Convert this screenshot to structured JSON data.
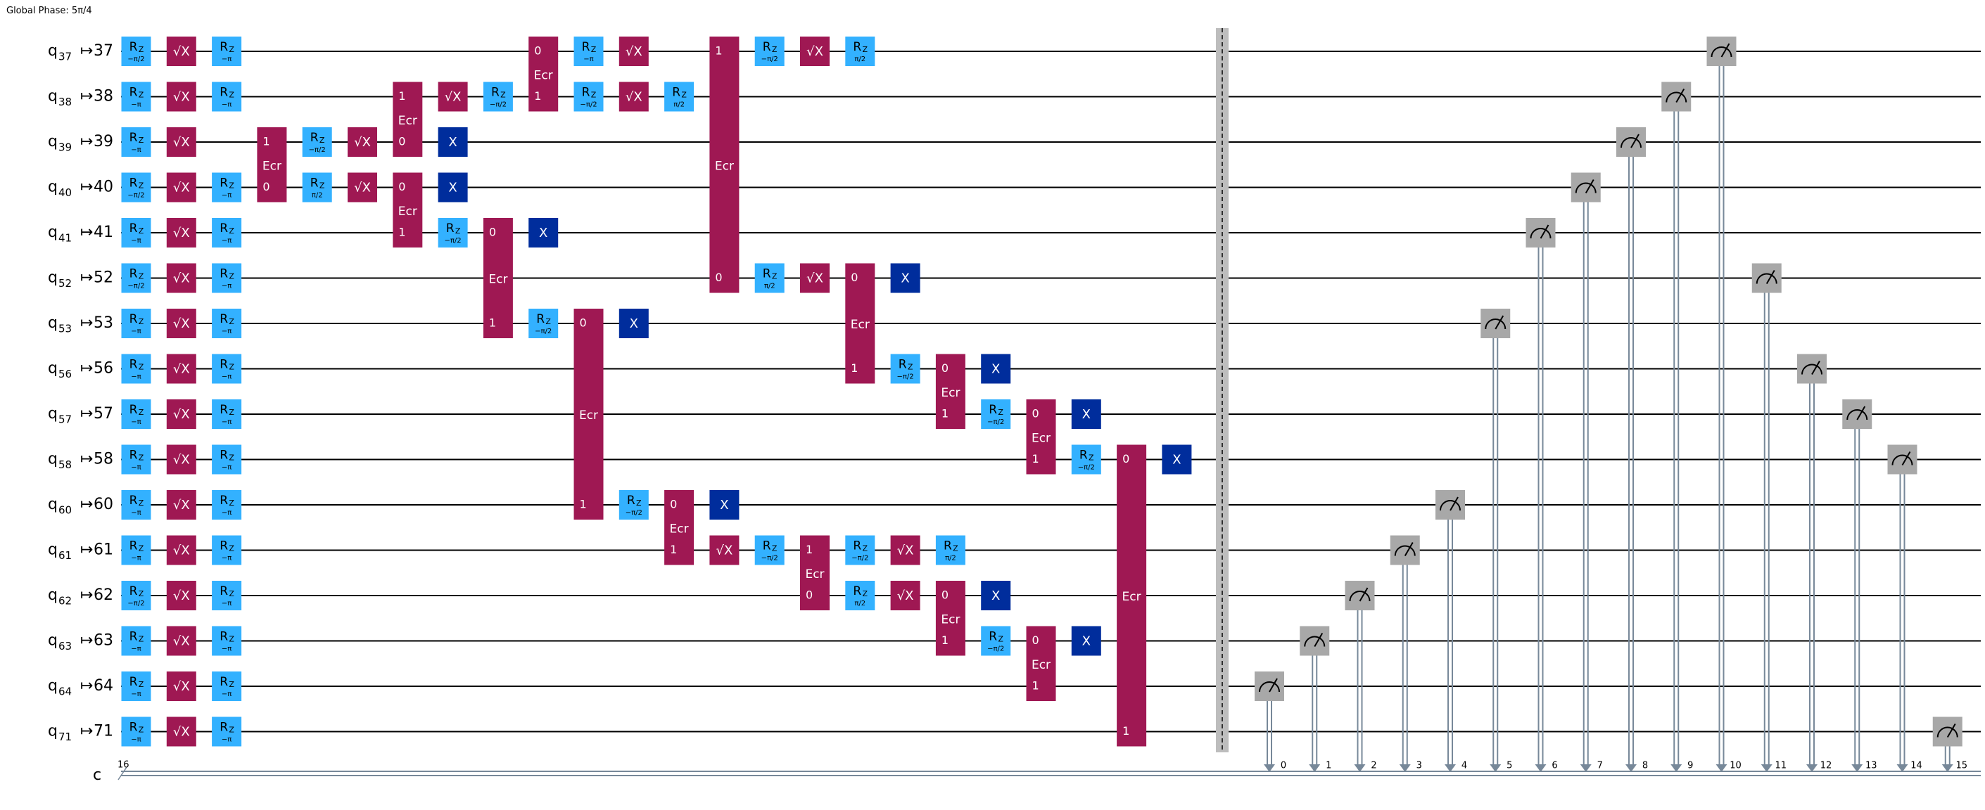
{
  "header": {
    "global_phase": "Global Phase: 5π/4"
  },
  "colors": {
    "rz": "#33b1ff",
    "sx": "#9f1853",
    "ecr": "#9f1853",
    "x": "#002d9c",
    "measure": "#a8a8a8",
    "barrier": "#bdbdbd",
    "wire": "#000000",
    "classical": "#778899"
  },
  "qubits": [
    {
      "name": "q",
      "sub": "37",
      "arrow": "↦",
      "phys": "37"
    },
    {
      "name": "q",
      "sub": "38",
      "arrow": "↦",
      "phys": "38"
    },
    {
      "name": "q",
      "sub": "39",
      "arrow": "↦",
      "phys": "39"
    },
    {
      "name": "q",
      "sub": "40",
      "arrow": "↦",
      "phys": "40"
    },
    {
      "name": "q",
      "sub": "41",
      "arrow": "↦",
      "phys": "41"
    },
    {
      "name": "q",
      "sub": "52",
      "arrow": "↦",
      "phys": "52"
    },
    {
      "name": "q",
      "sub": "53",
      "arrow": "↦",
      "phys": "53"
    },
    {
      "name": "q",
      "sub": "56",
      "arrow": "↦",
      "phys": "56"
    },
    {
      "name": "q",
      "sub": "57",
      "arrow": "↦",
      "phys": "57"
    },
    {
      "name": "q",
      "sub": "58",
      "arrow": "↦",
      "phys": "58"
    },
    {
      "name": "q",
      "sub": "60",
      "arrow": "↦",
      "phys": "60"
    },
    {
      "name": "q",
      "sub": "61",
      "arrow": "↦",
      "phys": "61"
    },
    {
      "name": "q",
      "sub": "62",
      "arrow": "↦",
      "phys": "62"
    },
    {
      "name": "q",
      "sub": "63",
      "arrow": "↦",
      "phys": "63"
    },
    {
      "name": "q",
      "sub": "64",
      "arrow": "↦",
      "phys": "64"
    },
    {
      "name": "q",
      "sub": "71",
      "arrow": "↦",
      "phys": "71"
    }
  ],
  "classical": {
    "name": "c",
    "size": "16"
  },
  "gate_labels": {
    "rz_main": "R",
    "rz_sub": "Z",
    "sx": "√X",
    "x": "X",
    "ecr": "Ecr"
  },
  "ops": [
    {
      "t": "rz",
      "q": 0,
      "c": 0,
      "p": "−π/2"
    },
    {
      "t": "rz",
      "q": 1,
      "c": 0,
      "p": "−π"
    },
    {
      "t": "rz",
      "q": 2,
      "c": 0,
      "p": "−π"
    },
    {
      "t": "rz",
      "q": 3,
      "c": 0,
      "p": "−π/2"
    },
    {
      "t": "rz",
      "q": 4,
      "c": 0,
      "p": "−π"
    },
    {
      "t": "rz",
      "q": 5,
      "c": 0,
      "p": "−π/2"
    },
    {
      "t": "rz",
      "q": 6,
      "c": 0,
      "p": "−π"
    },
    {
      "t": "rz",
      "q": 7,
      "c": 0,
      "p": "−π"
    },
    {
      "t": "rz",
      "q": 8,
      "c": 0,
      "p": "−π"
    },
    {
      "t": "rz",
      "q": 9,
      "c": 0,
      "p": "−π"
    },
    {
      "t": "rz",
      "q": 10,
      "c": 0,
      "p": "−π"
    },
    {
      "t": "rz",
      "q": 11,
      "c": 0,
      "p": "−π"
    },
    {
      "t": "rz",
      "q": 12,
      "c": 0,
      "p": "−π/2"
    },
    {
      "t": "rz",
      "q": 13,
      "c": 0,
      "p": "−π"
    },
    {
      "t": "rz",
      "q": 14,
      "c": 0,
      "p": "−π"
    },
    {
      "t": "rz",
      "q": 15,
      "c": 0,
      "p": "−π"
    },
    {
      "t": "sx",
      "q": 0,
      "c": 1
    },
    {
      "t": "sx",
      "q": 1,
      "c": 1
    },
    {
      "t": "sx",
      "q": 2,
      "c": 1
    },
    {
      "t": "sx",
      "q": 3,
      "c": 1
    },
    {
      "t": "sx",
      "q": 4,
      "c": 1
    },
    {
      "t": "sx",
      "q": 5,
      "c": 1
    },
    {
      "t": "sx",
      "q": 6,
      "c": 1
    },
    {
      "t": "sx",
      "q": 7,
      "c": 1
    },
    {
      "t": "sx",
      "q": 8,
      "c": 1
    },
    {
      "t": "sx",
      "q": 9,
      "c": 1
    },
    {
      "t": "sx",
      "q": 10,
      "c": 1
    },
    {
      "t": "sx",
      "q": 11,
      "c": 1
    },
    {
      "t": "sx",
      "q": 12,
      "c": 1
    },
    {
      "t": "sx",
      "q": 13,
      "c": 1
    },
    {
      "t": "sx",
      "q": 14,
      "c": 1
    },
    {
      "t": "sx",
      "q": 15,
      "c": 1
    },
    {
      "t": "rz",
      "q": 0,
      "c": 2,
      "p": "−π"
    },
    {
      "t": "rz",
      "q": 1,
      "c": 2,
      "p": "−π"
    },
    {
      "t": "rz",
      "q": 3,
      "c": 2,
      "p": "−π"
    },
    {
      "t": "rz",
      "q": 4,
      "c": 2,
      "p": "−π"
    },
    {
      "t": "rz",
      "q": 5,
      "c": 2,
      "p": "−π"
    },
    {
      "t": "rz",
      "q": 6,
      "c": 2,
      "p": "−π"
    },
    {
      "t": "rz",
      "q": 7,
      "c": 2,
      "p": "−π"
    },
    {
      "t": "rz",
      "q": 8,
      "c": 2,
      "p": "−π"
    },
    {
      "t": "rz",
      "q": 9,
      "c": 2,
      "p": "−π"
    },
    {
      "t": "rz",
      "q": 10,
      "c": 2,
      "p": "−π"
    },
    {
      "t": "rz",
      "q": 11,
      "c": 2,
      "p": "−π"
    },
    {
      "t": "rz",
      "q": 12,
      "c": 2,
      "p": "−π"
    },
    {
      "t": "rz",
      "q": 13,
      "c": 2,
      "p": "−π"
    },
    {
      "t": "rz",
      "q": 14,
      "c": 2,
      "p": "−π"
    },
    {
      "t": "rz",
      "q": 15,
      "c": 2,
      "p": "−π"
    },
    {
      "t": "ecr",
      "c": 3,
      "a": 2,
      "b": 3,
      "top": "1",
      "bot": "0"
    },
    {
      "t": "rz",
      "q": 2,
      "c": 4,
      "p": "−π/2"
    },
    {
      "t": "rz",
      "q": 3,
      "c": 4,
      "p": "π/2"
    },
    {
      "t": "sx",
      "q": 2,
      "c": 5
    },
    {
      "t": "sx",
      "q": 3,
      "c": 5
    },
    {
      "t": "ecr",
      "c": 6,
      "a": 1,
      "b": 2,
      "top": "1",
      "bot": "0"
    },
    {
      "t": "ecr",
      "c": 6,
      "a": 3,
      "b": 4,
      "top": "0",
      "bot": "1"
    },
    {
      "t": "sx",
      "q": 1,
      "c": 7
    },
    {
      "t": "x",
      "q": 2,
      "c": 7
    },
    {
      "t": "x",
      "q": 3,
      "c": 7
    },
    {
      "t": "rz",
      "q": 4,
      "c": 7,
      "p": "−π/2"
    },
    {
      "t": "rz",
      "q": 1,
      "c": 8,
      "p": "−π/2"
    },
    {
      "t": "ecr",
      "c": 8,
      "a": 4,
      "b": 6,
      "top": "0",
      "bot": "1"
    },
    {
      "t": "x",
      "q": 4,
      "c": 9
    },
    {
      "t": "rz",
      "q": 6,
      "c": 9,
      "p": "−π/2"
    },
    {
      "t": "ecr",
      "c": 9,
      "a": 0,
      "b": 1,
      "top": "0",
      "bot": "1"
    },
    {
      "t": "rz",
      "q": 0,
      "c": 10,
      "p": "−π"
    },
    {
      "t": "rz",
      "q": 1,
      "c": 10,
      "p": "−π/2"
    },
    {
      "t": "ecr",
      "c": 10,
      "a": 6,
      "b": 10,
      "top": "0",
      "bot": "1"
    },
    {
      "t": "sx",
      "q": 0,
      "c": 11
    },
    {
      "t": "sx",
      "q": 1,
      "c": 11
    },
    {
      "t": "x",
      "q": 6,
      "c": 11
    },
    {
      "t": "rz",
      "q": 10,
      "c": 11,
      "p": "−π/2"
    },
    {
      "t": "rz",
      "q": 1,
      "c": 12,
      "p": "π/2"
    },
    {
      "t": "ecr",
      "c": 12,
      "a": 10,
      "b": 11,
      "top": "0",
      "bot": "1"
    },
    {
      "t": "ecr",
      "c": 13,
      "a": 0,
      "b": 5,
      "top": "1",
      "bot": "0"
    },
    {
      "t": "x",
      "q": 10,
      "c": 13
    },
    {
      "t": "sx",
      "q": 11,
      "c": 13
    },
    {
      "t": "rz",
      "q": 0,
      "c": 14,
      "p": "−π/2"
    },
    {
      "t": "rz",
      "q": 5,
      "c": 14,
      "p": "π/2"
    },
    {
      "t": "rz",
      "q": 11,
      "c": 14,
      "p": "−π/2"
    },
    {
      "t": "sx",
      "q": 0,
      "c": 15
    },
    {
      "t": "sx",
      "q": 5,
      "c": 15
    },
    {
      "t": "ecr",
      "c": 15,
      "a": 11,
      "b": 12,
      "top": "1",
      "bot": "0"
    },
    {
      "t": "rz",
      "q": 0,
      "c": 16,
      "p": "π/2"
    },
    {
      "t": "ecr",
      "c": 16,
      "a": 5,
      "b": 7,
      "top": "0",
      "bot": "1"
    },
    {
      "t": "rz",
      "q": 11,
      "c": 16,
      "p": "−π/2"
    },
    {
      "t": "rz",
      "q": 12,
      "c": 16,
      "p": "π/2"
    },
    {
      "t": "x",
      "q": 5,
      "c": 17
    },
    {
      "t": "rz",
      "q": 7,
      "c": 17,
      "p": "−π/2"
    },
    {
      "t": "sx",
      "q": 11,
      "c": 17
    },
    {
      "t": "sx",
      "q": 12,
      "c": 17
    },
    {
      "t": "ecr",
      "c": 18,
      "a": 7,
      "b": 8,
      "top": "0",
      "bot": "1"
    },
    {
      "t": "rz",
      "q": 11,
      "c": 18,
      "p": "π/2"
    },
    {
      "t": "ecr",
      "c": 18,
      "a": 12,
      "b": 13,
      "top": "0",
      "bot": "1"
    },
    {
      "t": "x",
      "q": 7,
      "c": 19
    },
    {
      "t": "rz",
      "q": 8,
      "c": 19,
      "p": "−π/2"
    },
    {
      "t": "x",
      "q": 12,
      "c": 19
    },
    {
      "t": "rz",
      "q": 13,
      "c": 19,
      "p": "−π/2"
    },
    {
      "t": "ecr",
      "c": 20,
      "a": 8,
      "b": 9,
      "top": "0",
      "bot": "1"
    },
    {
      "t": "ecr",
      "c": 20,
      "a": 13,
      "b": 14,
      "top": "0",
      "bot": "1"
    },
    {
      "t": "x",
      "q": 8,
      "c": 21
    },
    {
      "t": "rz",
      "q": 9,
      "c": 21,
      "p": "−π/2"
    },
    {
      "t": "x",
      "q": 13,
      "c": 21
    },
    {
      "t": "ecr",
      "c": 22,
      "a": 9,
      "b": 15,
      "top": "0",
      "bot": "1"
    },
    {
      "t": "x",
      "q": 9,
      "c": 23
    }
  ],
  "measurements": [
    {
      "q": 14,
      "bit": "0"
    },
    {
      "q": 13,
      "bit": "1"
    },
    {
      "q": 12,
      "bit": "2"
    },
    {
      "q": 11,
      "bit": "3"
    },
    {
      "q": 10,
      "bit": "4"
    },
    {
      "q": 6,
      "bit": "5"
    },
    {
      "q": 4,
      "bit": "6"
    },
    {
      "q": 3,
      "bit": "7"
    },
    {
      "q": 2,
      "bit": "8"
    },
    {
      "q": 1,
      "bit": "9"
    },
    {
      "q": 0,
      "bit": "10"
    },
    {
      "q": 5,
      "bit": "11"
    },
    {
      "q": 7,
      "bit": "12"
    },
    {
      "q": 8,
      "bit": "13"
    },
    {
      "q": 9,
      "bit": "14"
    },
    {
      "q": 15,
      "bit": "15"
    }
  ]
}
